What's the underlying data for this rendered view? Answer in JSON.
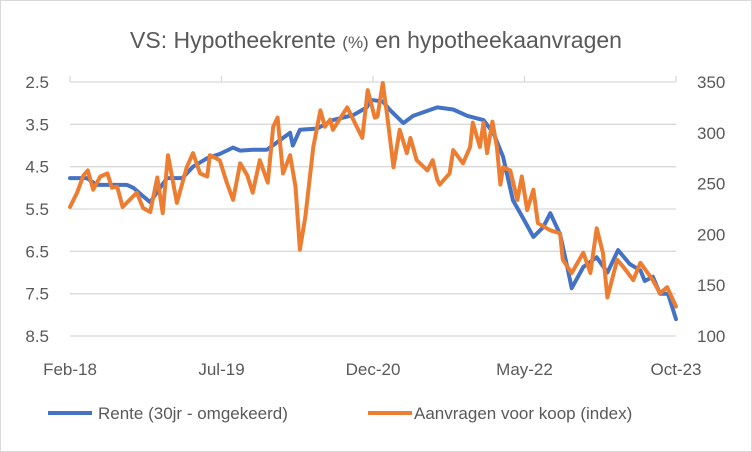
{
  "chart_data": {
    "type": "line",
    "title": "VS: Hypotheekrente",
    "title_unit": "(%)",
    "title_rest": "en hypotheekaanvragen",
    "x_unit": "months since Feb-18",
    "xlim": [
      0,
      68
    ],
    "x_ticks": [
      {
        "x": 0,
        "label": "Feb-18"
      },
      {
        "x": 17,
        "label": "Jul-19"
      },
      {
        "x": 34,
        "label": "Dec-20"
      },
      {
        "x": 51,
        "label": "May-22"
      },
      {
        "x": 68,
        "label": "Oct-23"
      }
    ],
    "y_left": {
      "ticks": [
        "2.5",
        "3.5",
        "4.5",
        "5.5",
        "6.5",
        "7.5",
        "8.5"
      ],
      "ylim": [
        2.5,
        8.5
      ],
      "inverted": true
    },
    "y_right": {
      "ticks": [
        "350",
        "300",
        "250",
        "200",
        "150",
        "100"
      ],
      "ylim": [
        100,
        350
      ]
    },
    "grid": true,
    "legend_position": "bottom",
    "series": [
      {
        "name": "Rente (30jr - omgekeerd)",
        "axis": "left",
        "color": "#4472C4",
        "points": [
          [
            0,
            4.77
          ],
          [
            1.9,
            4.77
          ],
          [
            3.0,
            4.93
          ],
          [
            6.4,
            4.93
          ],
          [
            7.1,
            5.0
          ],
          [
            8.2,
            5.2
          ],
          [
            9.0,
            5.34
          ],
          [
            10.1,
            5.0
          ],
          [
            10.9,
            4.77
          ],
          [
            12.6,
            4.77
          ],
          [
            13.8,
            4.5
          ],
          [
            15.4,
            4.3
          ],
          [
            16.8,
            4.2
          ],
          [
            18.3,
            4.05
          ],
          [
            19.1,
            4.12
          ],
          [
            20.5,
            4.1
          ],
          [
            22.1,
            4.1
          ],
          [
            23.2,
            3.93
          ],
          [
            24.7,
            3.7
          ],
          [
            25.0,
            4.0
          ],
          [
            25.8,
            3.63
          ],
          [
            27.7,
            3.6
          ],
          [
            29.5,
            3.4
          ],
          [
            31.8,
            3.28
          ],
          [
            33.3,
            3.1
          ],
          [
            33.7,
            2.92
          ],
          [
            35.1,
            2.96
          ],
          [
            35.9,
            3.16
          ],
          [
            37.4,
            3.47
          ],
          [
            38.5,
            3.3
          ],
          [
            41.2,
            3.1
          ],
          [
            43.0,
            3.15
          ],
          [
            44.6,
            3.3
          ],
          [
            46.4,
            3.4
          ],
          [
            47.5,
            3.7
          ],
          [
            48.6,
            4.27
          ],
          [
            49.7,
            5.29
          ],
          [
            50.8,
            5.7
          ],
          [
            52.0,
            6.16
          ],
          [
            53.1,
            5.93
          ],
          [
            53.9,
            5.6
          ],
          [
            55.0,
            6.1
          ],
          [
            55.8,
            6.87
          ],
          [
            56.3,
            7.37
          ],
          [
            57.6,
            6.87
          ],
          [
            59.1,
            6.64
          ],
          [
            60.3,
            7.0
          ],
          [
            61.5,
            6.47
          ],
          [
            62.8,
            6.8
          ],
          [
            64.0,
            6.95
          ],
          [
            64.5,
            7.2
          ],
          [
            65.4,
            7.1
          ],
          [
            66.2,
            7.5
          ],
          [
            67.1,
            7.5
          ],
          [
            68.0,
            8.1
          ]
        ]
      },
      {
        "name": "Aanvragen voor koop (index)",
        "axis": "right",
        "color": "#ED7D31",
        "points": [
          [
            0,
            227
          ],
          [
            0.8,
            241
          ],
          [
            1.5,
            258
          ],
          [
            2.0,
            263
          ],
          [
            2.6,
            244
          ],
          [
            3.4,
            257
          ],
          [
            4.2,
            260
          ],
          [
            4.7,
            246
          ],
          [
            5.3,
            247
          ],
          [
            5.9,
            227
          ],
          [
            7.5,
            241
          ],
          [
            8.2,
            226
          ],
          [
            9.0,
            222
          ],
          [
            9.8,
            256
          ],
          [
            10.4,
            221
          ],
          [
            11.0,
            278
          ],
          [
            12.0,
            231
          ],
          [
            13.1,
            266
          ],
          [
            13.8,
            280
          ],
          [
            14.6,
            260
          ],
          [
            15.4,
            257
          ],
          [
            15.7,
            278
          ],
          [
            16.8,
            273
          ],
          [
            17.6,
            251
          ],
          [
            18.3,
            234
          ],
          [
            19.1,
            270
          ],
          [
            19.9,
            258
          ],
          [
            20.5,
            241
          ],
          [
            21.3,
            273
          ],
          [
            22.2,
            251
          ],
          [
            22.8,
            306
          ],
          [
            23.3,
            315
          ],
          [
            23.9,
            260
          ],
          [
            24.7,
            278
          ],
          [
            25.3,
            247
          ],
          [
            25.8,
            185
          ],
          [
            26.4,
            217
          ],
          [
            27.3,
            286
          ],
          [
            28.1,
            322
          ],
          [
            28.6,
            306
          ],
          [
            29.2,
            313
          ],
          [
            29.5,
            303
          ],
          [
            31.1,
            325
          ],
          [
            32.8,
            295
          ],
          [
            33.4,
            342
          ],
          [
            34.2,
            315
          ],
          [
            34.5,
            316
          ],
          [
            35.1,
            349
          ],
          [
            35.6,
            316
          ],
          [
            36.3,
            266
          ],
          [
            37.0,
            303
          ],
          [
            37.8,
            280
          ],
          [
            38.2,
            295
          ],
          [
            38.9,
            273
          ],
          [
            40.1,
            263
          ],
          [
            40.7,
            273
          ],
          [
            41.2,
            254
          ],
          [
            41.5,
            249
          ],
          [
            42.6,
            260
          ],
          [
            43.0,
            283
          ],
          [
            44.1,
            270
          ],
          [
            44.9,
            286
          ],
          [
            45.2,
            310
          ],
          [
            46.0,
            286
          ],
          [
            46.4,
            310
          ],
          [
            46.8,
            280
          ],
          [
            47.4,
            311
          ],
          [
            47.9,
            286
          ],
          [
            48.3,
            249
          ],
          [
            48.6,
            266
          ],
          [
            49.4,
            263
          ],
          [
            50.2,
            234
          ],
          [
            50.7,
            257
          ],
          [
            51.3,
            224
          ],
          [
            52.0,
            244
          ],
          [
            52.5,
            211
          ],
          [
            53.9,
            204
          ],
          [
            55.0,
            201
          ],
          [
            55.3,
            175
          ],
          [
            56.3,
            162
          ],
          [
            57.6,
            182
          ],
          [
            58.4,
            162
          ],
          [
            59.1,
            206
          ],
          [
            59.8,
            182
          ],
          [
            60.3,
            138
          ],
          [
            61.4,
            175
          ],
          [
            62.1,
            168
          ],
          [
            63.2,
            155
          ],
          [
            64.0,
            172
          ],
          [
            65.4,
            155
          ],
          [
            66.2,
            142
          ],
          [
            67.0,
            148
          ],
          [
            68.0,
            129
          ]
        ]
      }
    ]
  }
}
